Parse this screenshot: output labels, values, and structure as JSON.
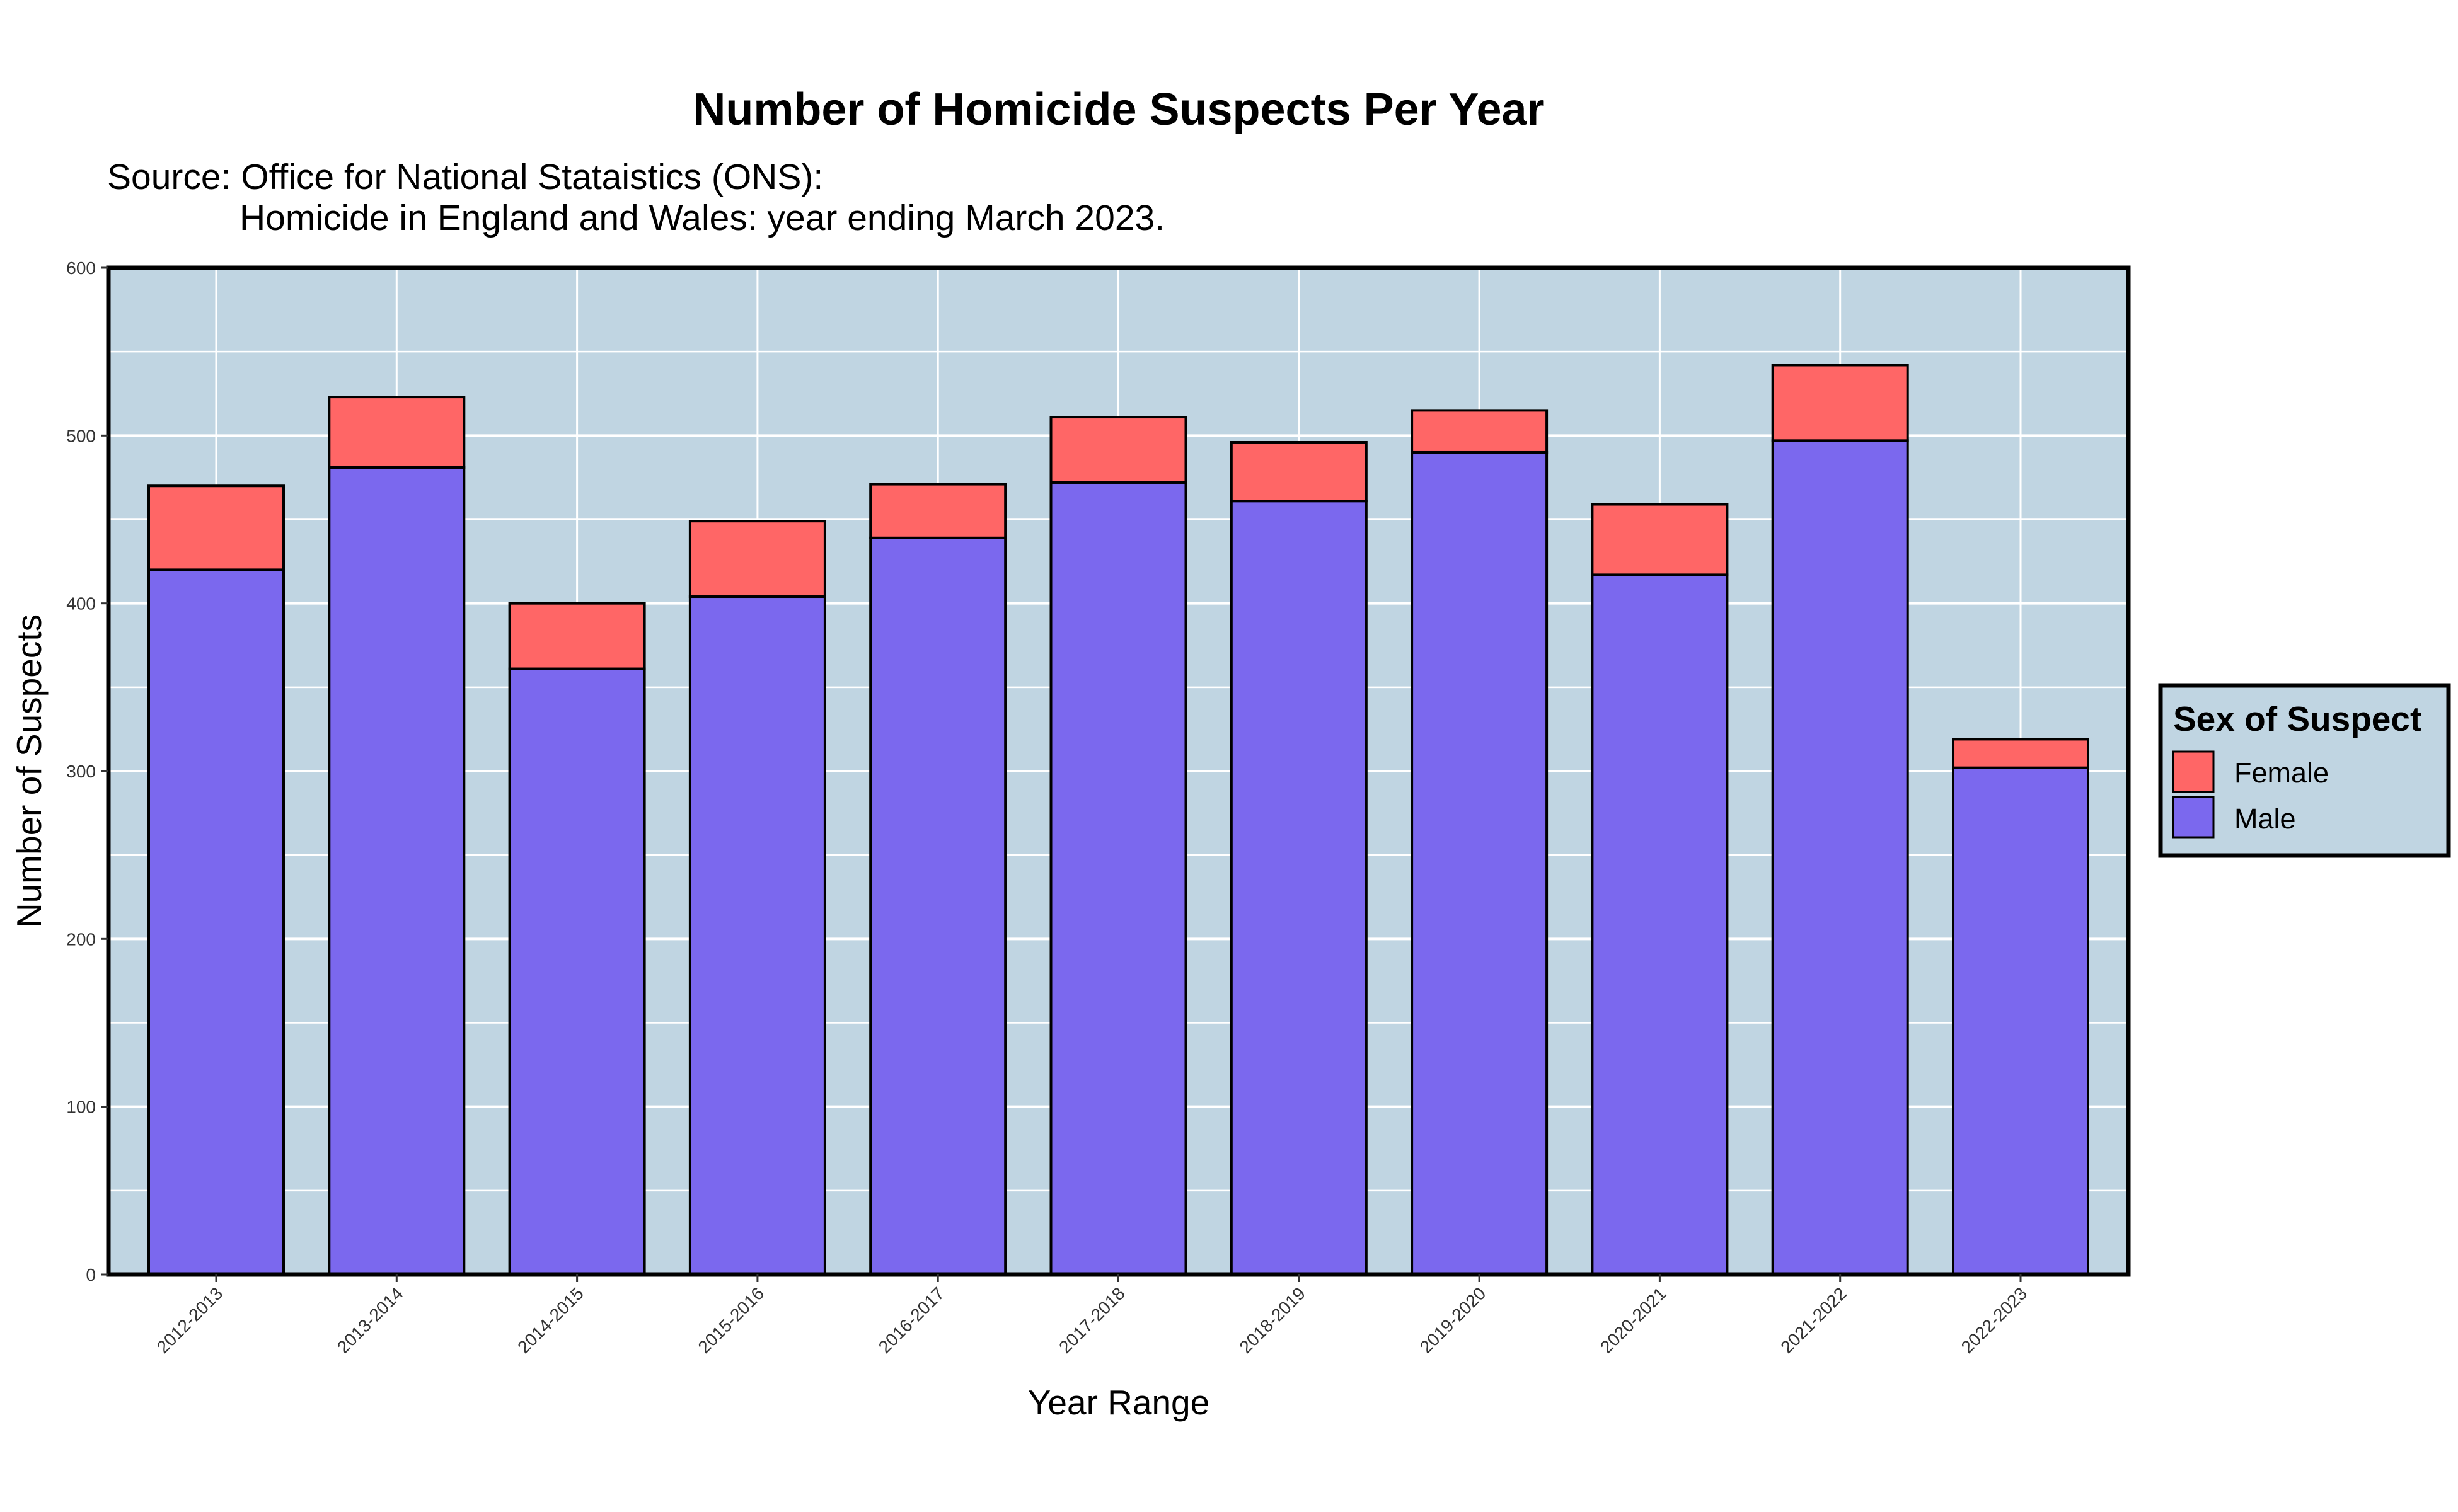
{
  "chart_data": {
    "type": "bar",
    "stacked": true,
    "title": "Number of Homicide Suspects Per Year",
    "subtitle_lines": [
      "Source: Office for National Stataistics (ONS):",
      "Homicide in England and Wales: year ending March 2023."
    ],
    "xlabel": "Year Range",
    "ylabel": "Number of Suspects",
    "ylim": [
      0,
      600
    ],
    "yticks": [
      "0",
      "100",
      "200",
      "300",
      "400",
      "500",
      "600"
    ],
    "categories": [
      "2012-2013",
      "2013-2014",
      "2014-2015",
      "2015-2016",
      "2016-2017",
      "2017-2018",
      "2018-2019",
      "2019-2020",
      "2020-2021",
      "2021-2022",
      "2022-2023"
    ],
    "series": [
      {
        "name": "Male",
        "color": "#7b68ee",
        "values": [
          420,
          481,
          361,
          404,
          439,
          472,
          461,
          490,
          417,
          497,
          302
        ]
      },
      {
        "name": "Female",
        "color": "#ff6666",
        "values": [
          50,
          42,
          39,
          45,
          32,
          39,
          35,
          25,
          42,
          45,
          17
        ]
      }
    ],
    "legend": {
      "title": "Sex of Suspect",
      "position": "right",
      "entries": [
        "Female",
        "Male"
      ]
    },
    "grid": true,
    "panel_background": "#c0d5e2"
  }
}
